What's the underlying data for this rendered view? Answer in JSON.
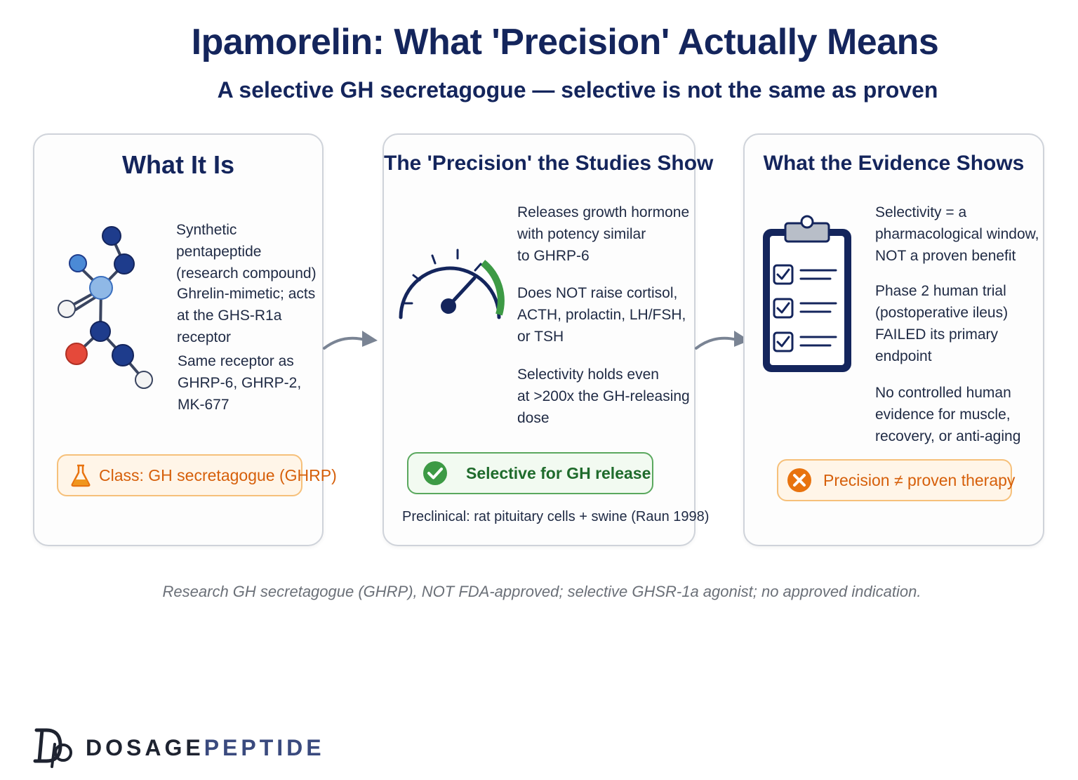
{
  "header": {
    "title": "Ipamorelin: What 'Precision' Actually Means",
    "subtitle": "A selective GH secretagogue — selective is not the same as proven"
  },
  "panels": [
    {
      "title": "What It Is",
      "icon": "molecule-icon",
      "points": [
        [
          "Synthetic pentapeptide",
          "(research compound)"
        ],
        [
          "Ghrelin-mimetic; acts",
          "at the GHS-R1a receptor"
        ],
        [
          "Same receptor as",
          "GHRP-6, GHRP-2,",
          "MK-677"
        ]
      ],
      "badge": {
        "icon": "flask-icon",
        "label": "Class: GH secretagogue (GHRP)"
      }
    },
    {
      "title": "The 'Precision' the Studies Show",
      "icon": "gauge-icon",
      "points": [
        [
          "Releases growth hormone",
          "with potency similar",
          "to GHRP-6"
        ],
        [
          "Does NOT raise cortisol,",
          "ACTH, prolactin, LH/FSH,",
          "or TSH"
        ],
        [
          "Selectivity holds even",
          "at >200x the GH-releasing",
          "dose"
        ]
      ],
      "badge": {
        "icon": "check-circle-icon",
        "label": "Selective for GH release"
      },
      "note": "Preclinical: rat pituitary cells + swine (Raun 1998)"
    },
    {
      "title": "What the Evidence Shows",
      "icon": "clipboard-checklist-icon",
      "points": [
        [
          "Selectivity = a",
          "pharmacological window,",
          "NOT a proven benefit"
        ],
        [
          "Phase 2 human trial",
          "(postoperative ileus)",
          "FAILED its primary",
          "endpoint"
        ],
        [
          "No controlled human",
          "evidence for muscle,",
          "recovery, or anti-aging"
        ]
      ],
      "badge": {
        "icon": "x-circle-icon",
        "label": "Precision ≠ proven therapy"
      }
    }
  ],
  "footer": {
    "disclaimer": "Research GH secretagogue (GHRP), NOT FDA-approved; selective GHSR-1a agonist; no approved indication.",
    "logo_text_a": "DOSAGE",
    "logo_text_b": "PEPTIDE"
  },
  "colors": {
    "navy": "#14255c",
    "orange": "#e8730f",
    "green": "#3d9a45",
    "red_atom": "#e5493a",
    "light_blue_atom": "#8fb8e6"
  }
}
